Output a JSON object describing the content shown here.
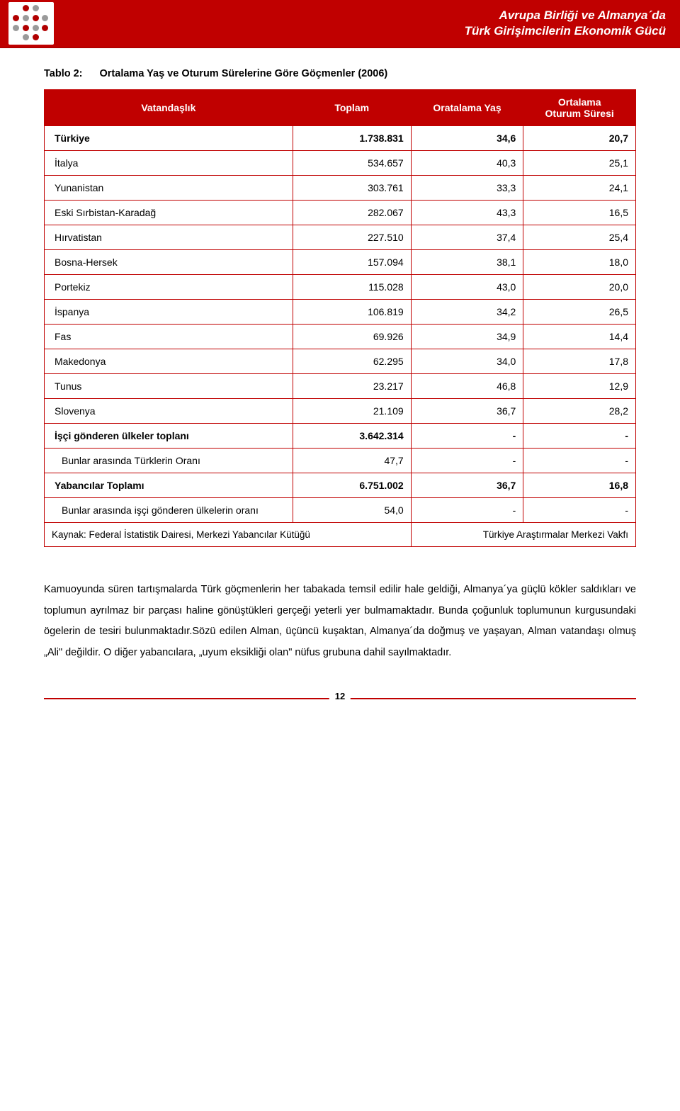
{
  "header": {
    "line1": "Avrupa Birliği ve Almanya´da",
    "line2": "Türk Girişimcilerin Ekonomik Gücü"
  },
  "caption": {
    "label": "Tablo 2:",
    "title": "Ortalama Yaş ve Oturum Sürelerine Göre Göçmenler (2006)"
  },
  "columns": {
    "c1": "Vatandaşlık",
    "c2": "Toplam",
    "c3": "Oratalama Yaş",
    "c4_l1": "Ortalama",
    "c4_l2": "Oturum Süresi"
  },
  "rows": [
    {
      "label": "Türkiye",
      "v1": "1.738.831",
      "v2": "34,6",
      "v3": "20,7",
      "bold": true
    },
    {
      "label": "İtalya",
      "v1": "534.657",
      "v2": "40,3",
      "v3": "25,1"
    },
    {
      "label": "Yunanistan",
      "v1": "303.761",
      "v2": "33,3",
      "v3": "24,1"
    },
    {
      "label": "Eski Sırbistan-Karadağ",
      "v1": "282.067",
      "v2": "43,3",
      "v3": "16,5"
    },
    {
      "label": "Hırvatistan",
      "v1": "227.510",
      "v2": "37,4",
      "v3": "25,4"
    },
    {
      "label": "Bosna-Hersek",
      "v1": "157.094",
      "v2": "38,1",
      "v3": "18,0"
    },
    {
      "label": "Portekiz",
      "v1": "115.028",
      "v2": "43,0",
      "v3": "20,0"
    },
    {
      "label": "İspanya",
      "v1": "106.819",
      "v2": "34,2",
      "v3": "26,5"
    },
    {
      "label": "Fas",
      "v1": "69.926",
      "v2": "34,9",
      "v3": "14,4"
    },
    {
      "label": "Makedonya",
      "v1": "62.295",
      "v2": "34,0",
      "v3": "17,8"
    },
    {
      "label": "Tunus",
      "v1": "23.217",
      "v2": "46,8",
      "v3": "12,9"
    },
    {
      "label": "Slovenya",
      "v1": "21.109",
      "v2": "36,7",
      "v3": "28,2"
    },
    {
      "label": "İşçi gönderen ülkeler toplanı",
      "v1": "3.642.314",
      "v2": "-",
      "v3": "-",
      "bold": true
    },
    {
      "label": "Bunlar arasında Türklerin Oranı",
      "v1": "47,7",
      "v2": "-",
      "v3": "-",
      "indent": true
    },
    {
      "label": "Yabancılar Toplamı",
      "v1": "6.751.002",
      "v2": "36,7",
      "v3": "16,8",
      "bold": true
    },
    {
      "label": "Bunlar arasında işçi gönderen ülkelerin oranı",
      "v1": "54,0",
      "v2": "-",
      "v3": "-",
      "indent": true
    }
  ],
  "source": {
    "left": "Kaynak: Federal İstatistik Dairesi, Merkezi Yabancılar Kütüğü",
    "right": "Türkiye Araştırmalar Merkezi Vakfı"
  },
  "paragraph": "Kamuoyunda süren tartışmalarda Türk göçmenlerin her tabakada temsil edilir hale geldiği, Almanya´ya güçlü kökler saldıkları ve toplumun ayrılmaz bir parçası haline gönüştükleri gerçeği yeterli yer bulmamaktadır. Bunda çoğunluk toplumunun kurgusundaki ögelerin de tesiri bulunmaktadır.Sözü edilen Alman, üçüncü kuşaktan, Almanya´da doğmuş ve yaşayan, Alman vatandaşı olmuş „Ali\" değildir. O diğer yabancılara, „uyum eksikliği olan\" nüfus grubuna dahil sayılmaktadır.",
  "page_number": "12",
  "col_widths": {
    "c1": "42%",
    "c2": "20%",
    "c3": "19%",
    "c4": "19%"
  },
  "colors": {
    "brand": "#c00000",
    "text": "#000000",
    "header_text": "#ffffff",
    "bg": "#ffffff"
  }
}
